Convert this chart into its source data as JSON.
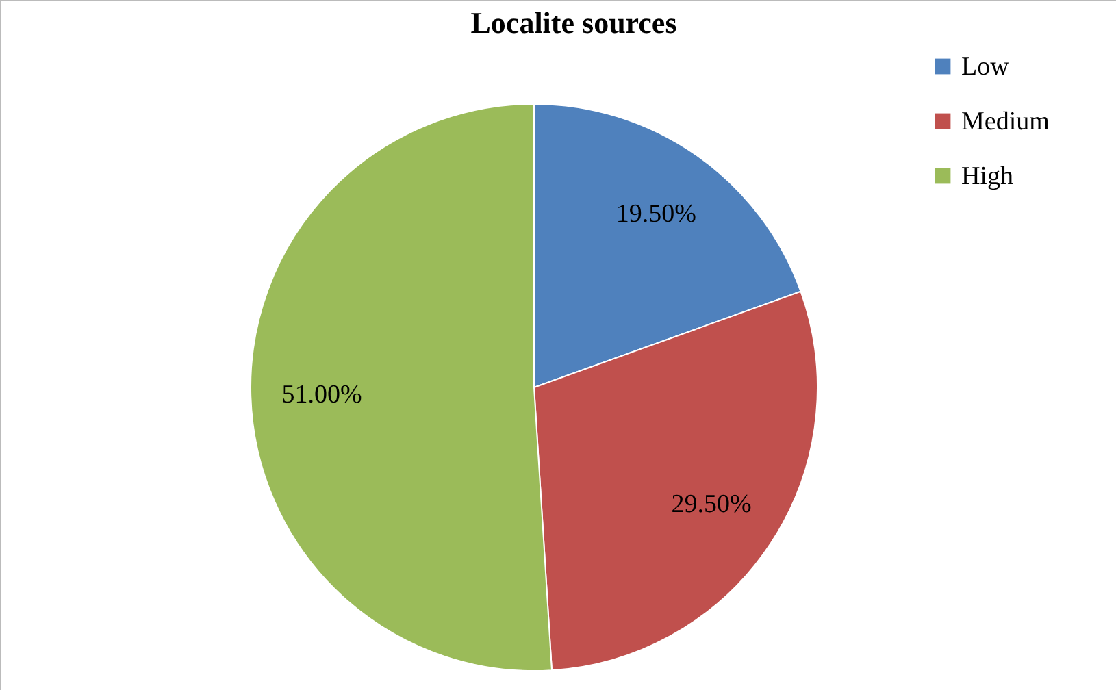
{
  "chart_data": {
    "type": "pie",
    "title": "Localite sources",
    "categories": [
      "Low",
      "Medium",
      "High"
    ],
    "values": [
      19.5,
      29.5,
      51
    ],
    "colors": [
      "#4f81bd",
      "#c0504d",
      "#9bbb59"
    ],
    "value_labels": [
      "19.50%",
      "29.50%",
      "51.00%"
    ],
    "legend": "top right"
  }
}
